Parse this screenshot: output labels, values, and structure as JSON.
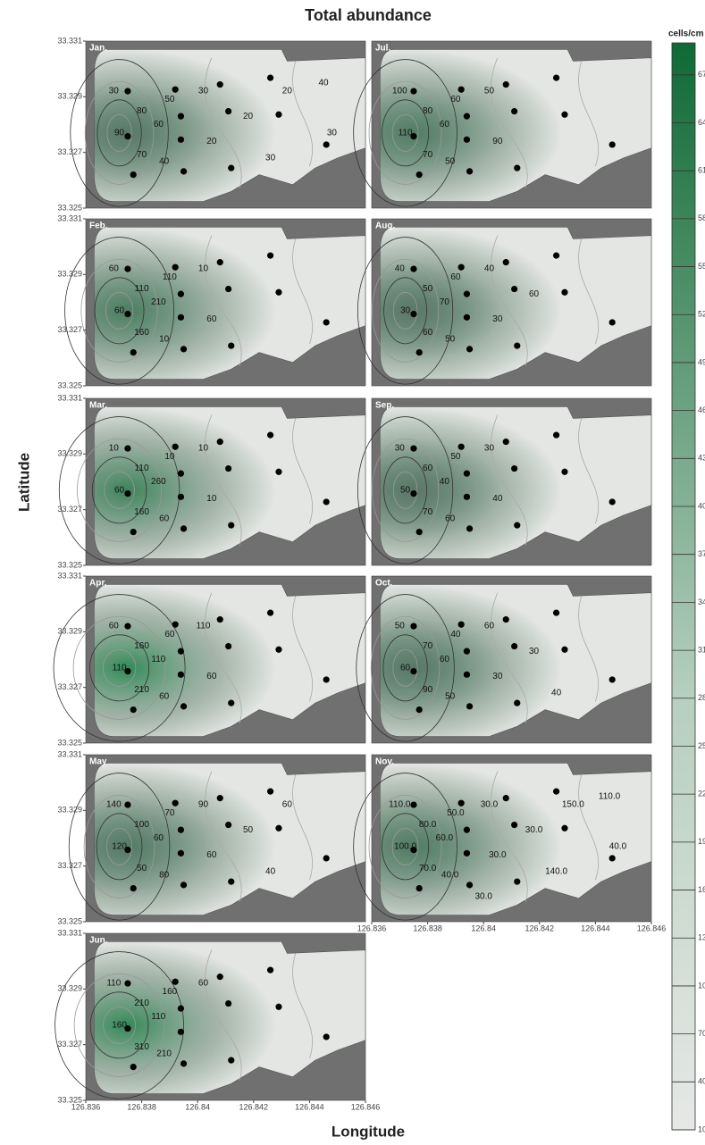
{
  "chart_data": {
    "type": "contour",
    "title": "Total abundance",
    "x_label": "Longitude",
    "y_label": "Latitude",
    "xlim": [
      126.836,
      126.846
    ],
    "ylim": [
      33.325,
      33.331
    ],
    "xticks": [
      126.836,
      126.838,
      126.84,
      126.842,
      126.844,
      126.846
    ],
    "yticks": [
      33.325,
      33.327,
      33.329,
      33.331
    ],
    "panels": [
      {
        "label": "Jan.",
        "contour_labels": [
          "30",
          "90",
          "80",
          "70",
          "60",
          "50",
          "40",
          "30",
          "20",
          "20",
          "30",
          "20",
          "40",
          "30"
        ]
      },
      {
        "label": "Feb.",
        "contour_labels": [
          "60",
          "60",
          "110",
          "160",
          "210",
          "110",
          "10",
          "10",
          "60"
        ]
      },
      {
        "label": "Mar.",
        "contour_labels": [
          "10",
          "60",
          "110",
          "160",
          "260",
          "10",
          "60",
          "10",
          "10"
        ]
      },
      {
        "label": "Apr.",
        "contour_labels": [
          "60",
          "110",
          "160",
          "210",
          "110",
          "60",
          "60",
          "110",
          "60"
        ]
      },
      {
        "label": "May",
        "contour_labels": [
          "140",
          "120",
          "100",
          "50",
          "60",
          "70",
          "80",
          "90",
          "60",
          "50",
          "40",
          "60"
        ]
      },
      {
        "label": "Jun.",
        "contour_labels": [
          "110",
          "160",
          "210",
          "310",
          "110",
          "160",
          "210",
          "60"
        ]
      },
      {
        "label": "Jul.",
        "contour_labels": [
          "100",
          "110",
          "80",
          "70",
          "60",
          "60",
          "50",
          "50",
          "90"
        ]
      },
      {
        "label": "Aug.",
        "contour_labels": [
          "40",
          "30",
          "50",
          "60",
          "70",
          "60",
          "50",
          "40",
          "30",
          "60"
        ]
      },
      {
        "label": "Sep.",
        "contour_labels": [
          "30",
          "50",
          "60",
          "70",
          "40",
          "50",
          "60",
          "30",
          "40"
        ]
      },
      {
        "label": "Oct.",
        "contour_labels": [
          "50",
          "60",
          "70",
          "90",
          "60",
          "40",
          "50",
          "60",
          "30",
          "30",
          "40"
        ]
      },
      {
        "label": "Nov.",
        "contour_labels": [
          "110.0",
          "100.0",
          "80.0",
          "70.0",
          "60.0",
          "50.0",
          "40.0",
          "30.0",
          "30.0",
          "30.0",
          "140.0",
          "150.0",
          "110.0",
          "40.0",
          "30.0"
        ]
      }
    ],
    "colorbar": {
      "label": "cells/cm",
      "lim": [
        10,
        690
      ],
      "ticks": [
        10,
        40,
        70,
        100,
        130,
        160,
        190,
        220,
        250,
        280,
        310,
        340,
        370,
        400,
        430,
        460,
        490,
        520,
        550,
        580,
        610,
        640,
        670
      ]
    }
  }
}
